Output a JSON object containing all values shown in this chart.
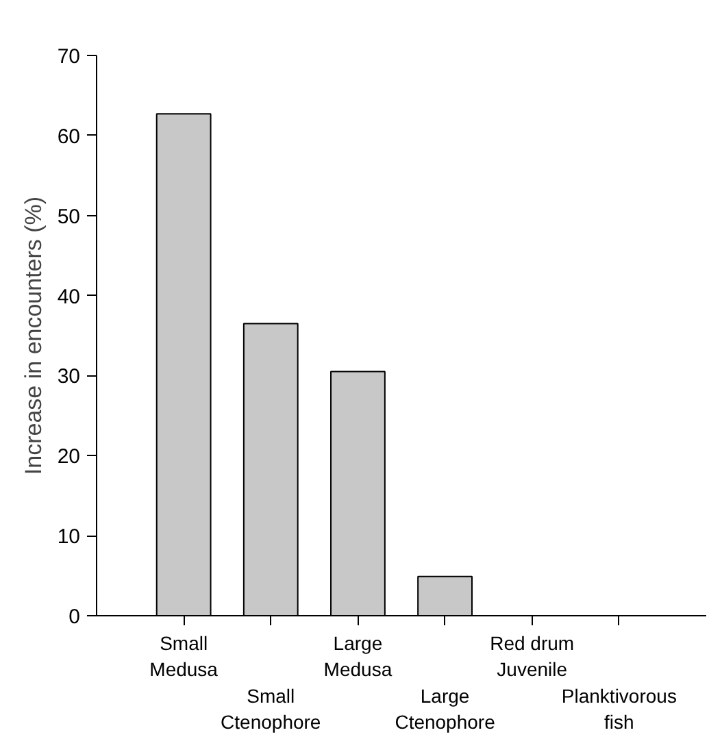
{
  "chart_data": {
    "type": "bar",
    "ylabel": "Increase in encounters (%)",
    "categories": [
      "Small\nMedusa",
      "Small\nCtenophore",
      "Large\nMedusa",
      "Large\nCtenophore",
      "Red drum\nJuvenile",
      "Planktivorous\nfish"
    ],
    "values": [
      62.7,
      36.5,
      30.5,
      4.9,
      0,
      0
    ],
    "color": "#c8c8c8",
    "ylim": [
      0,
      70
    ],
    "yticks": [
      0,
      10,
      20,
      30,
      40,
      50,
      60,
      70
    ],
    "grid": false
  }
}
